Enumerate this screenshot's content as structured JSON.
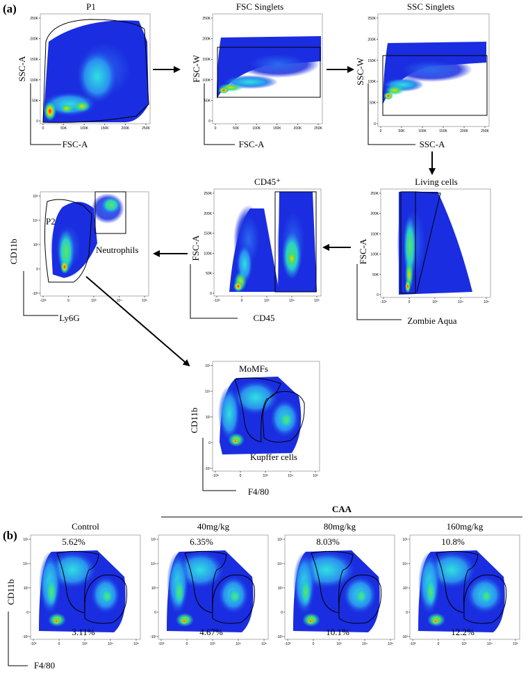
{
  "labels": {
    "panel_a": "(a)",
    "panel_b": "(b)"
  },
  "colors": {
    "density_low": "#1a2de0",
    "density_mid": "#22c7e8",
    "density_high": "#ff2a00",
    "gate": "#000000"
  },
  "tick_sets": {
    "linear": [
      "0",
      "50K",
      "100K",
      "150K",
      "200K",
      "250K"
    ],
    "log": [
      "-10³",
      "0",
      "10³",
      "10⁴",
      "10⁵"
    ],
    "log5": [
      "-10³",
      "0",
      "10³",
      "10⁴",
      "10⁵"
    ]
  },
  "plots": {
    "p1": {
      "title": "P1",
      "xlabel": "FSC-A",
      "ylabel": "SSC-A"
    },
    "fsc_singlets": {
      "title": "FSC Singlets",
      "xlabel": "FSC-A",
      "ylabel": "FSC-W"
    },
    "ssc_singlets": {
      "title": "SSC Singlets",
      "xlabel": "SSC-A",
      "ylabel": "SSC-W"
    },
    "living": {
      "title": "Living cells",
      "xlabel": "Zombie Aqua",
      "ylabel": "FSC-A"
    },
    "cd45": {
      "title": "CD45⁺",
      "xlabel": "CD45",
      "ylabel": "FSC-A"
    },
    "p2": {
      "title": "",
      "xlabel": "Ly6G",
      "ylabel": "CD11b",
      "gate_p2": "P2",
      "gate_neutrophils": "Neutrophils"
    },
    "momf": {
      "title": "",
      "xlabel": "F4/80",
      "ylabel": "CD11b",
      "gate_momf": "MoMFs",
      "gate_kupffer": "Kupffer cells"
    }
  },
  "panel_b": {
    "group_header": "CAA",
    "ylabel": "CD11b",
    "xlabel": "F4/80",
    "plots": [
      {
        "name": "Control",
        "momf_pct": "5.62%",
        "kupffer_pct": "3.11%"
      },
      {
        "name": "40mg/kg",
        "momf_pct": "6.35%",
        "kupffer_pct": "4.67%"
      },
      {
        "name": "80mg/kg",
        "momf_pct": "8.03%",
        "kupffer_pct": "10.1%"
      },
      {
        "name": "160mg/kg",
        "momf_pct": "10.8%",
        "kupffer_pct": "12.2%"
      }
    ]
  }
}
